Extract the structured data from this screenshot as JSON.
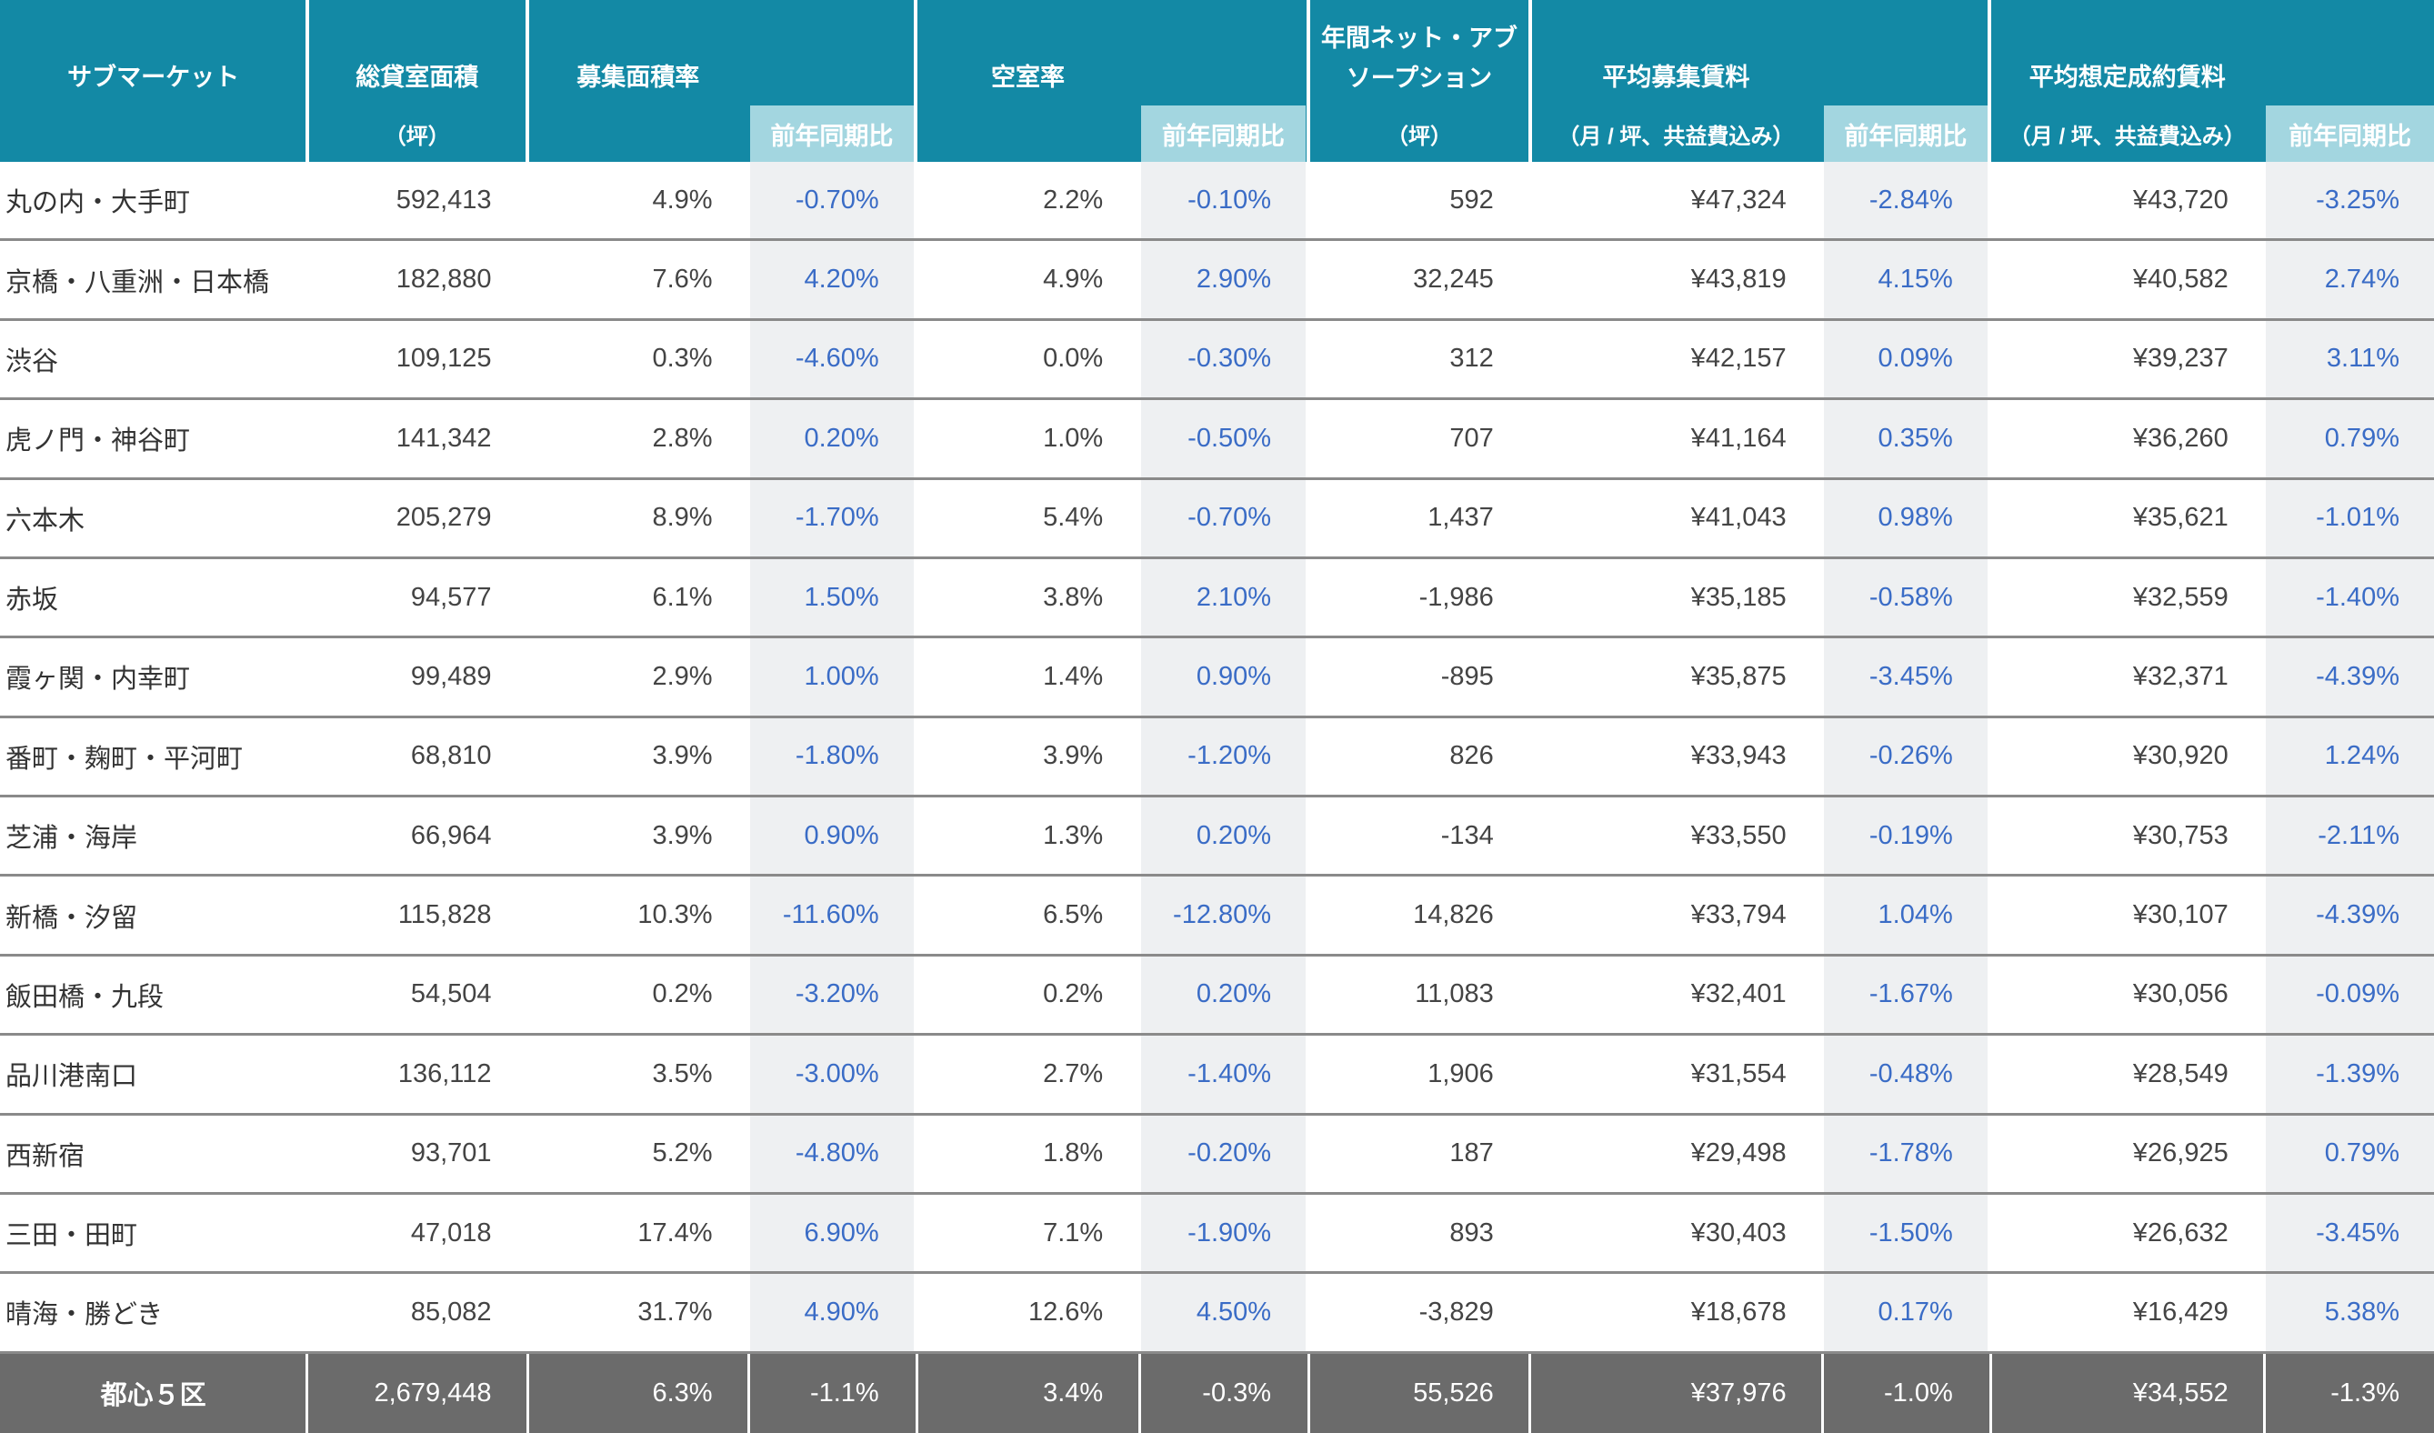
{
  "table": {
    "columns": [
      {
        "title": [
          "サブマーケット"
        ]
      },
      {
        "title": [
          "総貸室面積"
        ],
        "unit": "（坪）"
      },
      {
        "title": [
          "募集面積率"
        ]
      },
      {
        "sub": "前年同期比"
      },
      {
        "title": [
          "空室率"
        ]
      },
      {
        "sub": "前年同期比"
      },
      {
        "title": [
          "年間ネット・アブ",
          "ソープション"
        ],
        "unit": "（坪）"
      },
      {
        "title": [
          "平均募集賃料"
        ],
        "unit": "（月 / 坪、共益費込み）"
      },
      {
        "sub": "前年同期比"
      },
      {
        "title": [
          "平均想定成約賃料"
        ],
        "unit": "（月 / 坪、共益費込み）"
      },
      {
        "sub": "前年同期比"
      }
    ],
    "rows": [
      {
        "name": "丸の内・大手町",
        "values": [
          "592,413",
          "4.9%",
          "-0.70%",
          "2.2%",
          "-0.10%",
          "592",
          "¥47,324",
          "-2.84%",
          "¥43,720",
          "-3.25%"
        ]
      },
      {
        "name": "京橋・八重洲・日本橋",
        "values": [
          "182,880",
          "7.6%",
          "4.20%",
          "4.9%",
          "2.90%",
          "32,245",
          "¥43,819",
          "4.15%",
          "¥40,582",
          "2.74%"
        ]
      },
      {
        "name": "渋谷",
        "values": [
          "109,125",
          "0.3%",
          "-4.60%",
          "0.0%",
          "-0.30%",
          "312",
          "¥42,157",
          "0.09%",
          "¥39,237",
          "3.11%"
        ]
      },
      {
        "name": "虎ノ門・神谷町",
        "values": [
          "141,342",
          "2.8%",
          "0.20%",
          "1.0%",
          "-0.50%",
          "707",
          "¥41,164",
          "0.35%",
          "¥36,260",
          "0.79%"
        ]
      },
      {
        "name": "六本木",
        "values": [
          "205,279",
          "8.9%",
          "-1.70%",
          "5.4%",
          "-0.70%",
          "1,437",
          "¥41,043",
          "0.98%",
          "¥35,621",
          "-1.01%"
        ]
      },
      {
        "name": "赤坂",
        "values": [
          "94,577",
          "6.1%",
          "1.50%",
          "3.8%",
          "2.10%",
          "-1,986",
          "¥35,185",
          "-0.58%",
          "¥32,559",
          "-1.40%"
        ]
      },
      {
        "name": "霞ヶ関・内幸町",
        "values": [
          "99,489",
          "2.9%",
          "1.00%",
          "1.4%",
          "0.90%",
          "-895",
          "¥35,875",
          "-3.45%",
          "¥32,371",
          "-4.39%"
        ]
      },
      {
        "name": "番町・麹町・平河町",
        "values": [
          "68,810",
          "3.9%",
          "-1.80%",
          "3.9%",
          "-1.20%",
          "826",
          "¥33,943",
          "-0.26%",
          "¥30,920",
          "1.24%"
        ]
      },
      {
        "name": "芝浦・海岸",
        "values": [
          "66,964",
          "3.9%",
          "0.90%",
          "1.3%",
          "0.20%",
          "-134",
          "¥33,550",
          "-0.19%",
          "¥30,753",
          "-2.11%"
        ]
      },
      {
        "name": "新橋・汐留",
        "values": [
          "115,828",
          "10.3%",
          "-11.60%",
          "6.5%",
          "-12.80%",
          "14,826",
          "¥33,794",
          "1.04%",
          "¥30,107",
          "-4.39%"
        ]
      },
      {
        "name": "飯田橋・九段",
        "values": [
          "54,504",
          "0.2%",
          "-3.20%",
          "0.2%",
          "0.20%",
          "11,083",
          "¥32,401",
          "-1.67%",
          "¥30,056",
          "-0.09%"
        ]
      },
      {
        "name": "品川港南口",
        "values": [
          "136,112",
          "3.5%",
          "-3.00%",
          "2.7%",
          "-1.40%",
          "1,906",
          "¥31,554",
          "-0.48%",
          "¥28,549",
          "-1.39%"
        ]
      },
      {
        "name": "西新宿",
        "values": [
          "93,701",
          "5.2%",
          "-4.80%",
          "1.8%",
          "-0.20%",
          "187",
          "¥29,498",
          "-1.78%",
          "¥26,925",
          "0.79%"
        ]
      },
      {
        "name": "三田・田町",
        "values": [
          "47,018",
          "17.4%",
          "6.90%",
          "7.1%",
          "-1.90%",
          "893",
          "¥30,403",
          "-1.50%",
          "¥26,632",
          "-3.45%"
        ]
      },
      {
        "name": "晴海・勝どき",
        "values": [
          "85,082",
          "31.7%",
          "4.90%",
          "12.6%",
          "4.50%",
          "-3,829",
          "¥18,678",
          "0.17%",
          "¥16,429",
          "5.38%"
        ]
      }
    ],
    "total": {
      "name": "都心５区",
      "values": [
        "2,679,448",
        "6.3%",
        "-1.1%",
        "3.4%",
        "-0.3%",
        "55,526",
        "¥37,976",
        "-1.0%",
        "¥34,552",
        "-1.3%"
      ]
    }
  }
}
